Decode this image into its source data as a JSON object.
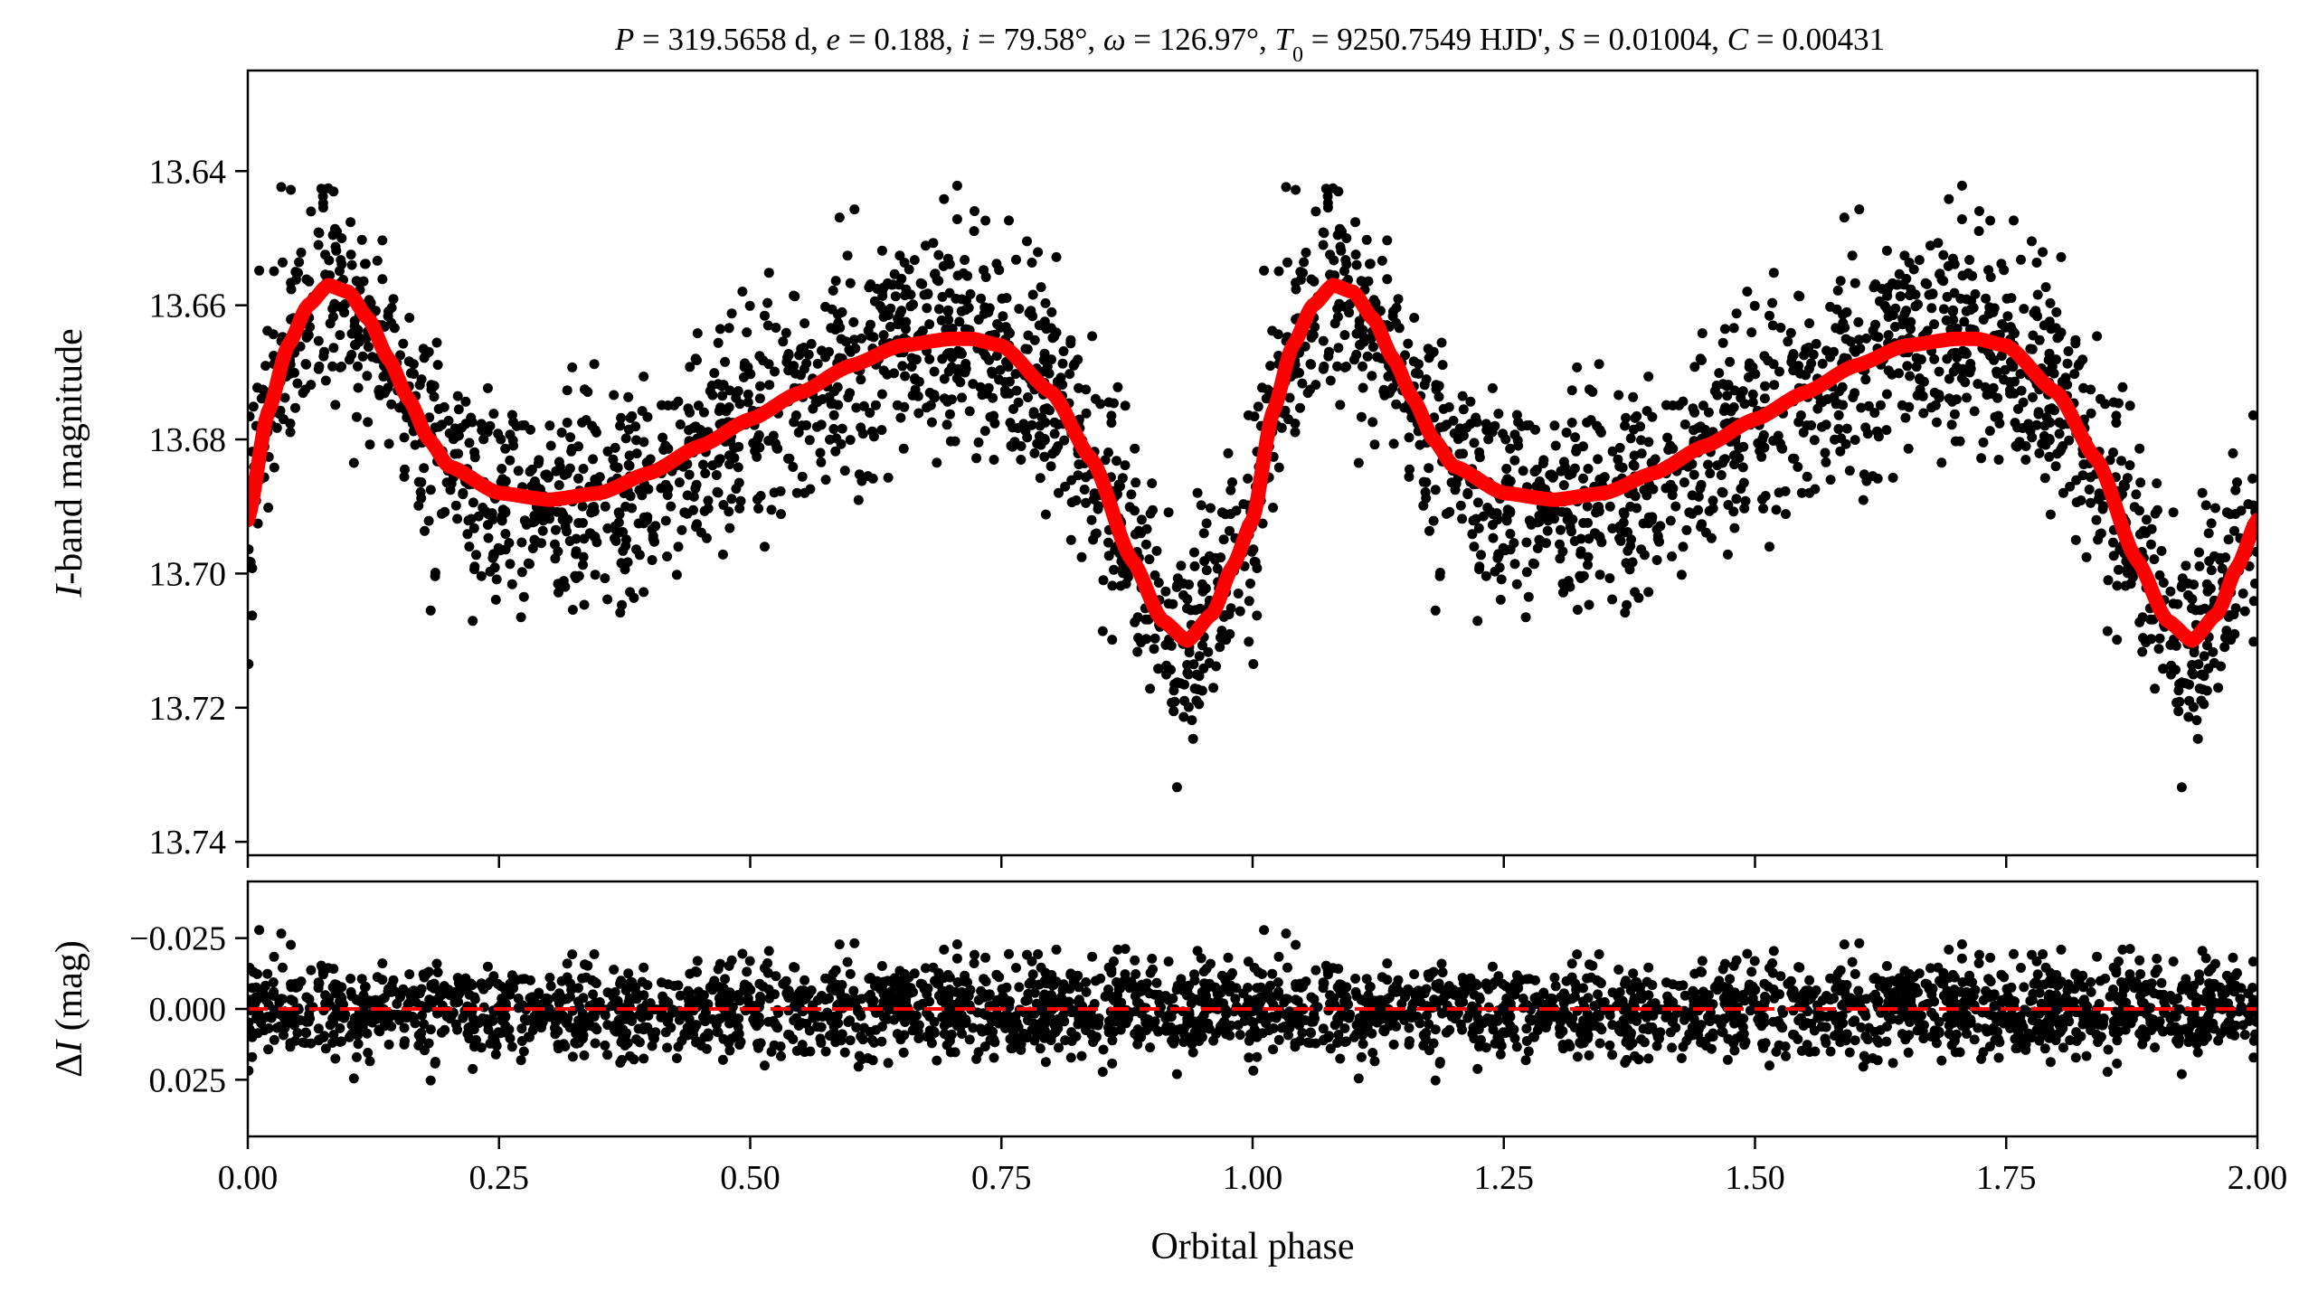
{
  "chart_data": [
    {
      "id": "lightcurve",
      "type": "scatter",
      "title": "P = 319.5658 d, e = 0.188, i = 79.58°, ω = 126.97°, T0 = 9250.7549 HJD', S = 0.01004, C = 0.00431",
      "title_parts": {
        "P_sym": "P",
        "P_val": " = 319.5658 d, ",
        "e_sym": "e",
        "e_val": " = 0.188, ",
        "i_sym": "i",
        "i_val": " = 79.58°, ",
        "w_sym": "ω",
        "w_val": " = 126.97°, ",
        "T_sym": "T",
        "T_sub": "0",
        "T_val": " = 9250.7549 HJD', ",
        "S_sym": "S",
        "S_val": " = 0.01004, ",
        "C_sym": "C",
        "C_val": " = 0.00431"
      },
      "ylabel_italic": "I",
      "ylabel_rest": "-band magnitude",
      "xlim": [
        0,
        2
      ],
      "ylim": [
        13.625,
        13.742
      ],
      "y_inverted": true,
      "yticks": [
        {
          "value": 13.64,
          "label": "13.64"
        },
        {
          "value": 13.66,
          "label": "13.66"
        },
        {
          "value": 13.68,
          "label": "13.68"
        },
        {
          "value": 13.7,
          "label": "13.70"
        },
        {
          "value": 13.72,
          "label": "13.72"
        },
        {
          "value": 13.74,
          "label": "13.74"
        }
      ],
      "model_curve": {
        "color": "#ff0000",
        "phase": [
          0.0,
          0.02,
          0.04,
          0.06,
          0.08,
          0.1,
          0.12,
          0.14,
          0.16,
          0.18,
          0.2,
          0.25,
          0.3,
          0.35,
          0.4,
          0.45,
          0.5,
          0.55,
          0.6,
          0.65,
          0.7,
          0.72,
          0.75,
          0.8,
          0.84,
          0.88,
          0.91,
          0.935,
          0.96,
          0.98,
          1.0
        ],
        "mag": [
          13.692,
          13.676,
          13.666,
          13.66,
          13.657,
          13.658,
          13.662,
          13.668,
          13.674,
          13.68,
          13.684,
          13.688,
          13.689,
          13.688,
          13.685,
          13.681,
          13.677,
          13.673,
          13.669,
          13.666,
          13.665,
          13.665,
          13.666,
          13.673,
          13.683,
          13.698,
          13.707,
          13.71,
          13.706,
          13.699,
          13.692
        ]
      },
      "observations": {
        "color": "#000000",
        "count_per_cycle": 1500,
        "scatter_mag": 0.008
      }
    },
    {
      "id": "residuals",
      "type": "scatter",
      "xlabel": "Orbital phase",
      "ylabel_delta": "Δ",
      "ylabel_italic": "I",
      "ylabel_rest": " (mag)",
      "xlim": [
        0,
        2
      ],
      "ylim": [
        -0.045,
        0.045
      ],
      "y_inverted": true,
      "xticks": [
        {
          "value": 0.0,
          "label": "0.00"
        },
        {
          "value": 0.25,
          "label": "0.25"
        },
        {
          "value": 0.5,
          "label": "0.50"
        },
        {
          "value": 0.75,
          "label": "0.75"
        },
        {
          "value": 1.0,
          "label": "1.00"
        },
        {
          "value": 1.25,
          "label": "1.25"
        },
        {
          "value": 1.5,
          "label": "1.50"
        },
        {
          "value": 1.75,
          "label": "1.75"
        },
        {
          "value": 2.0,
          "label": "2.00"
        }
      ],
      "yticks": [
        {
          "value": -0.025,
          "label": "−0.025"
        },
        {
          "value": 0.0,
          "label": "0.000"
        },
        {
          "value": 0.025,
          "label": "0.025"
        }
      ],
      "zero_line": {
        "value": 0,
        "color": "#ff0000",
        "style": "dashed"
      },
      "observations": {
        "color": "#000000",
        "count_per_cycle": 1500,
        "scatter_mag": 0.008
      }
    }
  ]
}
